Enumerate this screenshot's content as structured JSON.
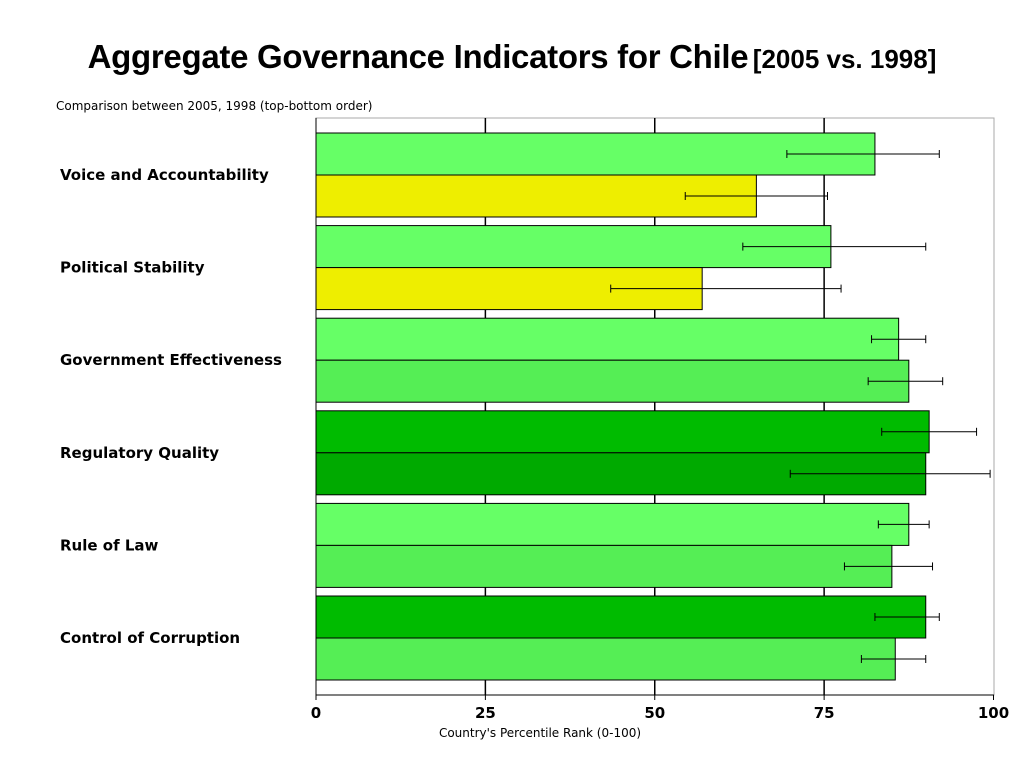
{
  "title": {
    "main": "Aggregate Governance Indicators for Chile",
    "sub": "[2005 vs. 1998]"
  },
  "chart_data": {
    "type": "bar",
    "orientation": "horizontal",
    "subtitle": "Comparison between 2005, 1998 (top-bottom order)",
    "xlabel": "Country's Percentile Rank (0-100)",
    "xlim": [
      0,
      100
    ],
    "xticks": [
      0,
      25,
      50,
      75,
      100
    ],
    "grid": "vertical",
    "categories": [
      "Voice and Accountability",
      "Political Stability",
      "Government Effectiveness",
      "Regulatory Quality",
      "Rule of Law",
      "Control of Corruption"
    ],
    "series": [
      {
        "values": [
          82.5,
          76,
          86,
          90.5,
          87.5,
          90
        ],
        "error_low": [
          69.5,
          63,
          82,
          83.5,
          83,
          82.5
        ],
        "error_high": [
          92,
          90,
          90,
          97.5,
          90.5,
          92
        ],
        "colors": [
          "#66ff66",
          "#66ff66",
          "#66ff66",
          "#00bb00",
          "#66ff66",
          "#00bb00"
        ]
      },
      {
        "values": [
          65,
          57,
          87.5,
          90,
          85,
          85.5
        ],
        "error_low": [
          54.5,
          43.5,
          81.5,
          70,
          78,
          80.5
        ],
        "error_high": [
          75.5,
          77.5,
          92.5,
          99.5,
          91,
          90
        ],
        "colors": [
          "#eeee00",
          "#eeee00",
          "#55ee55",
          "#00aa00",
          "#55ee55",
          "#55ee55"
        ]
      }
    ]
  }
}
